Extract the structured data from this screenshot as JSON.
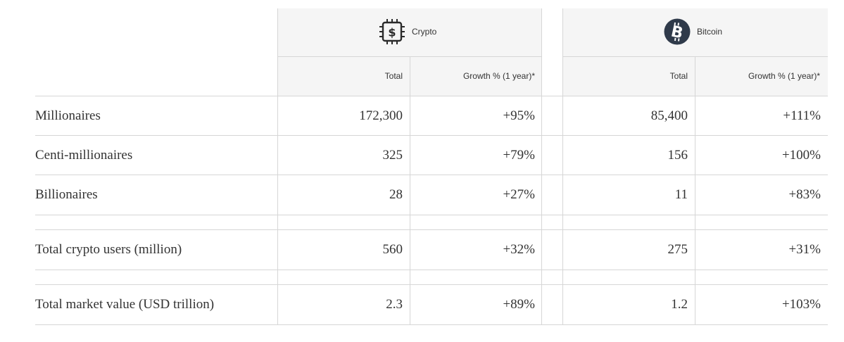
{
  "groups": [
    {
      "name": "Crypto",
      "icon": "crypto-chip-dollar-icon",
      "col_total": "Total",
      "col_growth": "Growth % (1 year)*"
    },
    {
      "name": "Bitcoin",
      "icon": "bitcoin-icon",
      "col_total": "Total",
      "col_growth": "Growth % (1 year)*"
    }
  ],
  "rows": [
    {
      "label": "Millionaires",
      "crypto_total": "172,300",
      "crypto_growth": "+95%",
      "btc_total": "85,400",
      "btc_growth": "+111%"
    },
    {
      "label": "Centi-millionaires",
      "crypto_total": "325",
      "crypto_growth": "+79%",
      "btc_total": "156",
      "btc_growth": "+100%"
    },
    {
      "label": "Billionaires",
      "crypto_total": "28",
      "crypto_growth": "+27%",
      "btc_total": "11",
      "btc_growth": "+83%"
    },
    {
      "label": "Total crypto users (million)",
      "crypto_total": "560",
      "crypto_growth": "+32%",
      "btc_total": "275",
      "btc_growth": "+31%"
    },
    {
      "label": "Total market value (USD trillion)",
      "crypto_total": "2.3",
      "crypto_growth": "+89%",
      "btc_total": "1.2",
      "btc_growth": "+103%"
    }
  ],
  "colors": {
    "header_bg": "#f5f5f5",
    "grid": "#d6d6d6",
    "text": "#333333",
    "bitcoin_badge": "#2f3a4a"
  }
}
